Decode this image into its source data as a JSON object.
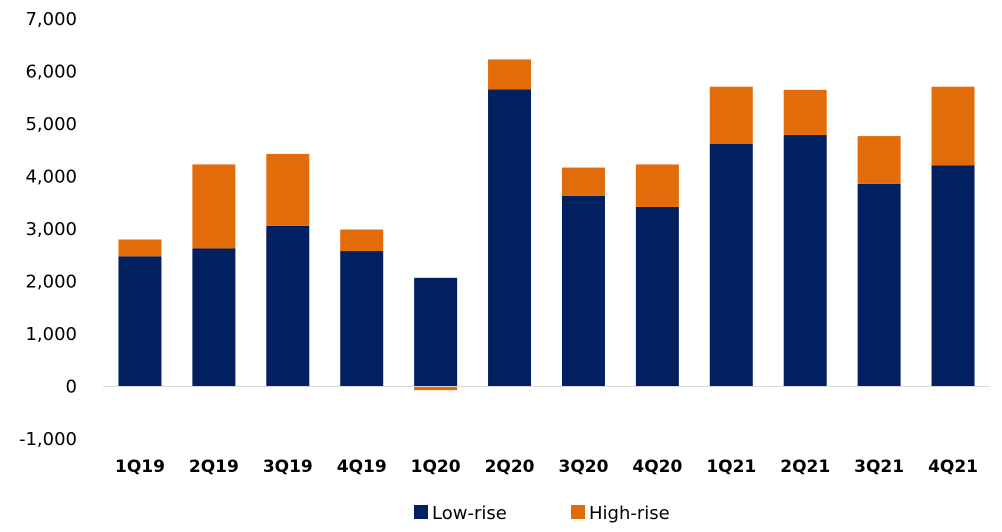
{
  "chart_data": {
    "type": "bar",
    "stacked": true,
    "categories": [
      "1Q19",
      "2Q19",
      "3Q19",
      "4Q19",
      "1Q20",
      "2Q20",
      "3Q20",
      "4Q20",
      "1Q21",
      "2Q21",
      "3Q21",
      "4Q21"
    ],
    "series": [
      {
        "name": "Low-rise",
        "color": "#002060",
        "values": [
          2480,
          2630,
          3060,
          2580,
          2070,
          5660,
          3630,
          3420,
          4620,
          4790,
          3860,
          4210
        ]
      },
      {
        "name": "High-rise",
        "color": "#E36C0A",
        "values": [
          320,
          1600,
          1370,
          410,
          -70,
          570,
          540,
          810,
          1090,
          860,
          910,
          1500
        ]
      }
    ],
    "yticks": [
      "-1,000",
      "0",
      "1,000",
      "2,000",
      "3,000",
      "4,000",
      "5,000",
      "6,000",
      "7,000"
    ],
    "ylim": [
      -1000,
      7000
    ],
    "grid": false,
    "legend_position": "bottom-center",
    "title": "",
    "xlabel": "",
    "ylabel": ""
  }
}
